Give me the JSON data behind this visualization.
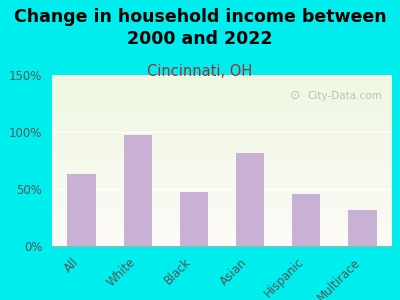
{
  "title": "Change in household income between\n2000 and 2022",
  "subtitle": "Cincinnati, OH",
  "categories": [
    "All",
    "White",
    "Black",
    "Asian",
    "Hispanic",
    "Multirace"
  ],
  "values": [
    63,
    97,
    47,
    82,
    46,
    32
  ],
  "bar_color": "#c9b0d5",
  "title_fontsize": 12.5,
  "subtitle_fontsize": 10.5,
  "subtitle_color": "#a03030",
  "title_color": "#000000",
  "background_color": "#00eeee",
  "ylim": [
    0,
    150
  ],
  "yticks": [
    0,
    50,
    100,
    150
  ],
  "ytick_labels": [
    "0%",
    "50%",
    "100%",
    "150%"
  ],
  "watermark": "City-Data.com",
  "watermark_color": "#b0b8b0"
}
